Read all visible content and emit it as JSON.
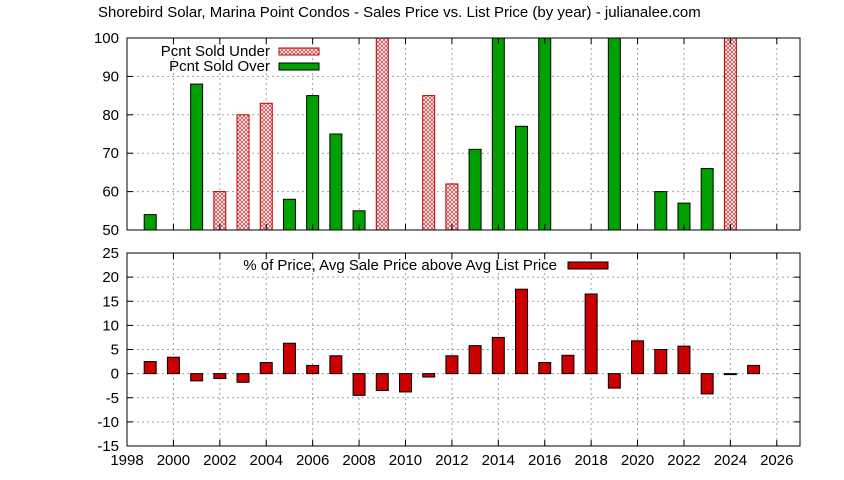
{
  "title": "Shorebird Solar, Marina Point Condos - Sales Price vs. List Price (by year) - julianalee.com",
  "colors": {
    "sold_over": "#00a000",
    "sold_under_fill": "#f4c8c8",
    "sold_under_stroke": "#c00000",
    "pct_above": "#cc0000",
    "grid": "#a0a0a0"
  },
  "chart_data": [
    {
      "type": "bar",
      "xlim": [
        1998,
        2027
      ],
      "xticks": [
        1998,
        2000,
        2002,
        2004,
        2006,
        2008,
        2010,
        2012,
        2014,
        2016,
        2018,
        2020,
        2022,
        2024,
        2026
      ],
      "ylim": [
        50,
        100
      ],
      "yticks": [
        50,
        60,
        70,
        80,
        90,
        100
      ],
      "grid": true,
      "legend_position": "top-left",
      "series": [
        {
          "name": "Pcnt Sold Under",
          "style": "hatched",
          "points": [
            {
              "x": 2002,
              "y": 60
            },
            {
              "x": 2003,
              "y": 80
            },
            {
              "x": 2004,
              "y": 83
            },
            {
              "x": 2009,
              "y": 100
            },
            {
              "x": 2011,
              "y": 85
            },
            {
              "x": 2012,
              "y": 62
            },
            {
              "x": 2024,
              "y": 100
            }
          ]
        },
        {
          "name": "Pcnt Sold Over",
          "style": "solid",
          "points": [
            {
              "x": 1999,
              "y": 54
            },
            {
              "x": 2001,
              "y": 88
            },
            {
              "x": 2005,
              "y": 58
            },
            {
              "x": 2006,
              "y": 85
            },
            {
              "x": 2007,
              "y": 75
            },
            {
              "x": 2008,
              "y": 55
            },
            {
              "x": 2013,
              "y": 71
            },
            {
              "x": 2014,
              "y": 100
            },
            {
              "x": 2015,
              "y": 77
            },
            {
              "x": 2016,
              "y": 100
            },
            {
              "x": 2019,
              "y": 100
            },
            {
              "x": 2021,
              "y": 60
            },
            {
              "x": 2022,
              "y": 57
            },
            {
              "x": 2023,
              "y": 66
            }
          ]
        }
      ]
    },
    {
      "type": "bar",
      "xlim": [
        1998,
        2027
      ],
      "xticks": [
        1998,
        2000,
        2002,
        2004,
        2006,
        2008,
        2010,
        2012,
        2014,
        2016,
        2018,
        2020,
        2022,
        2024,
        2026
      ],
      "ylim": [
        -15,
        25
      ],
      "yticks": [
        -15,
        -10,
        -5,
        0,
        5,
        10,
        15,
        20,
        25
      ],
      "grid": true,
      "legend_position": "top-center",
      "series": [
        {
          "name": "% of Price, Avg Sale Price above Avg List Price",
          "points": [
            {
              "x": 1999,
              "y": 2.5
            },
            {
              "x": 2000,
              "y": 3.4
            },
            {
              "x": 2001,
              "y": -1.5
            },
            {
              "x": 2002,
              "y": -1.0
            },
            {
              "x": 2003,
              "y": -1.8
            },
            {
              "x": 2004,
              "y": 2.3
            },
            {
              "x": 2005,
              "y": 6.3
            },
            {
              "x": 2006,
              "y": 1.7
            },
            {
              "x": 2007,
              "y": 3.7
            },
            {
              "x": 2008,
              "y": -4.5
            },
            {
              "x": 2009,
              "y": -3.5
            },
            {
              "x": 2010,
              "y": -3.8
            },
            {
              "x": 2011,
              "y": -0.7
            },
            {
              "x": 2012,
              "y": 3.7
            },
            {
              "x": 2013,
              "y": 5.8
            },
            {
              "x": 2014,
              "y": 7.5
            },
            {
              "x": 2015,
              "y": 17.5
            },
            {
              "x": 2016,
              "y": 2.3
            },
            {
              "x": 2017,
              "y": 3.8
            },
            {
              "x": 2018,
              "y": 16.5
            },
            {
              "x": 2019,
              "y": -3.0
            },
            {
              "x": 2020,
              "y": 6.8
            },
            {
              "x": 2021,
              "y": 5.0
            },
            {
              "x": 2022,
              "y": 5.7
            },
            {
              "x": 2023,
              "y": -4.2
            },
            {
              "x": 2024,
              "y": 0.0
            },
            {
              "x": 2025,
              "y": 1.7
            }
          ]
        }
      ]
    }
  ]
}
